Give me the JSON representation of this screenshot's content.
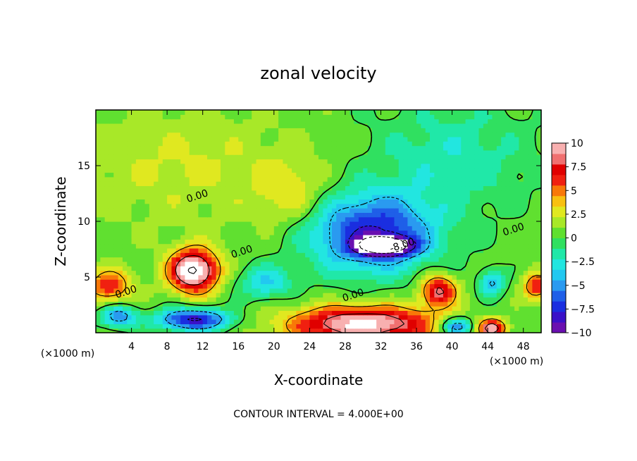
{
  "chart_data": {
    "type": "heatmap",
    "title": "zonal velocity",
    "xlabel": "X-coordinate",
    "ylabel": "Z-coordinate",
    "x_unit_left": "(×1000 m)",
    "x_unit_right": "(×1000 m)",
    "xlim": [
      0,
      50
    ],
    "ylim": [
      0,
      20
    ],
    "x_ticks": [
      4,
      8,
      12,
      16,
      20,
      24,
      28,
      32,
      36,
      40,
      44,
      48
    ],
    "y_ticks": [
      5,
      10,
      15
    ],
    "colorbar": {
      "range": [
        -10,
        10
      ],
      "ticks": [
        "10",
        "7.5",
        "5",
        "2.5",
        "0",
        "−2.5",
        "−5",
        "−7.5",
        "−10"
      ],
      "colors": [
        "#6a0fb0",
        "#3a10c8",
        "#1a2ee0",
        "#1f5fe8",
        "#2a9af0",
        "#22c8f0",
        "#22e6e0",
        "#20e8a8",
        "#30e060",
        "#60e030",
        "#a8e828",
        "#e0e820",
        "#f8c010",
        "#f87808",
        "#f02010",
        "#e00000",
        "#f07070",
        "#f8b0b0"
      ]
    },
    "contour_labels": [
      {
        "text": "0.00",
        "x": 11.5,
        "z": 12.0
      },
      {
        "text": "0.00",
        "x": 16.5,
        "z": 7.0
      },
      {
        "text": "0.00",
        "x": 3.5,
        "z": 3.4
      },
      {
        "text": "0.00",
        "x": 29.0,
        "z": 3.1
      },
      {
        "text": "0.00",
        "x": 47.0,
        "z": 9.0
      },
      {
        "text": "-8.00",
        "x": 34.5,
        "z": 7.6
      }
    ],
    "contour_interval_note": "CONTOUR INTERVAL = 4.000E+00",
    "field_features": [
      {
        "name": "upper-westerly-region",
        "x": 10,
        "z": 15,
        "sx": 12,
        "sz": 5,
        "v": 1.8
      },
      {
        "name": "mid-left-easterly-patch",
        "x": 22,
        "z": 12.5,
        "sx": 4,
        "sz": 3,
        "v": 2.5
      },
      {
        "name": "upper-right-easterly",
        "x": 40,
        "z": 16,
        "sx": 9,
        "sz": 5,
        "v": -2.6
      },
      {
        "name": "negative-jet-core",
        "x": 31,
        "z": 9,
        "sx": 7,
        "sz": 3.5,
        "v": -8.5
      },
      {
        "name": "negative-jet-core-white",
        "x": 32.5,
        "z": 7.8,
        "sx": 3,
        "sz": 0.8,
        "v": -13
      },
      {
        "name": "left-positive-lobe",
        "x": 11,
        "z": 5.6,
        "sx": 2.7,
        "sz": 1.9,
        "v": 12
      },
      {
        "name": "lower-positive-jet",
        "x": 30,
        "z": 0.8,
        "sx": 8,
        "sz": 1.6,
        "v": 10.5
      },
      {
        "name": "right-positive-patch",
        "x": 38.5,
        "z": 3.8,
        "sx": 2,
        "sz": 1.4,
        "v": 8
      },
      {
        "name": "bottom-left-negative",
        "x": 11,
        "z": 1.2,
        "sx": 4,
        "sz": 1.0,
        "v": -9
      },
      {
        "name": "left-edge-positive",
        "x": 1.5,
        "z": 4.2,
        "sx": 2.5,
        "sz": 1.5,
        "v": 6
      },
      {
        "name": "left-edge-negative",
        "x": 2.5,
        "z": 1.5,
        "sx": 2,
        "sz": 1.0,
        "v": -6
      },
      {
        "name": "bottom-right-positive",
        "x": 44.5,
        "z": 0.4,
        "sx": 1.5,
        "sz": 0.8,
        "v": 9
      },
      {
        "name": "bottom-right-negative",
        "x": 40.5,
        "z": 0.6,
        "sx": 1.8,
        "sz": 0.8,
        "v": -7
      },
      {
        "name": "right-negative-patch",
        "x": 44.5,
        "z": 4.5,
        "sx": 1.4,
        "sz": 1.2,
        "v": -5
      },
      {
        "name": "right-edge-positive",
        "x": 49.5,
        "z": 4.2,
        "sx": 1.5,
        "sz": 1.2,
        "v": 6
      },
      {
        "name": "lower-mid-negative",
        "x": 19,
        "z": 4.5,
        "sx": 3,
        "sz": 1.5,
        "v": -4
      }
    ]
  }
}
